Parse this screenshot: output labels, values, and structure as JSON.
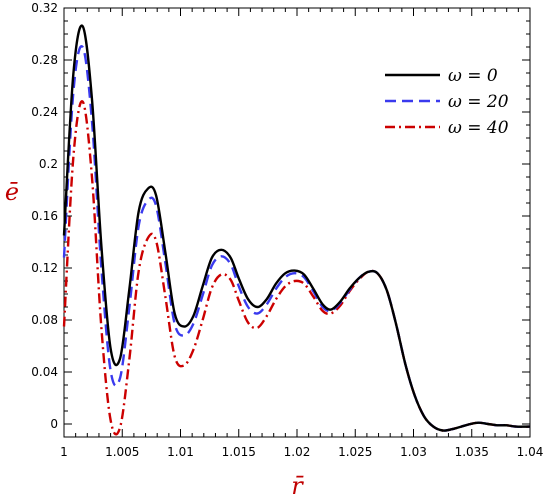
{
  "chart_data": {
    "type": "line",
    "xlabel": "r̄",
    "ylabel": "ē",
    "xlim": [
      1.0,
      1.04
    ],
    "ylim": [
      -0.01,
      0.32
    ],
    "x_ticks": [
      "1",
      "1.005",
      "1.01",
      "1.015",
      "1.02",
      "1.025",
      "1.03",
      "1.035",
      "1.04"
    ],
    "x_tick_values": [
      1.0,
      1.005,
      1.01,
      1.015,
      1.02,
      1.025,
      1.03,
      1.035,
      1.04
    ],
    "y_ticks": [
      "0",
      "0.04",
      "0.08",
      "0.12",
      "0.16",
      "0.2",
      "0.24",
      "0.28",
      "0.32"
    ],
    "y_tick_values": [
      0,
      0.04,
      0.08,
      0.12,
      0.16,
      0.2,
      0.24,
      0.28,
      0.32
    ],
    "grid": false,
    "legend_position": "top-right",
    "series": [
      {
        "name": "ω = 0",
        "color": "#000000",
        "style": "solid",
        "x": [
          1.0,
          1.0008,
          1.0016,
          1.0024,
          1.0032,
          1.004,
          1.0048,
          1.0056,
          1.0064,
          1.0072,
          1.0079,
          1.0087,
          1.0095,
          1.0103,
          1.0111,
          1.0119,
          1.0127,
          1.0135,
          1.0143,
          1.015,
          1.0158,
          1.0166,
          1.0174,
          1.0182,
          1.019,
          1.0198,
          1.0206,
          1.0214,
          1.0222,
          1.0229,
          1.0237,
          1.0245,
          1.0253,
          1.0261,
          1.0269,
          1.0277,
          1.0285,
          1.0293,
          1.0301,
          1.0309,
          1.0317,
          1.0325,
          1.0333,
          1.0341,
          1.0349,
          1.0356,
          1.0364,
          1.0372,
          1.038,
          1.0388,
          1.04
        ],
        "y": [
          0.145,
          0.269,
          0.306,
          0.25,
          0.138,
          0.058,
          0.05,
          0.103,
          0.163,
          0.181,
          0.176,
          0.132,
          0.085,
          0.075,
          0.083,
          0.106,
          0.128,
          0.134,
          0.128,
          0.112,
          0.096,
          0.09,
          0.096,
          0.108,
          0.116,
          0.118,
          0.115,
          0.104,
          0.092,
          0.088,
          0.094,
          0.104,
          0.112,
          0.117,
          0.116,
          0.103,
          0.077,
          0.046,
          0.022,
          0.006,
          -0.002,
          -0.005,
          -0.004,
          -0.002,
          0.0,
          0.001,
          0.0,
          -0.001,
          -0.001,
          -0.002,
          -0.002
        ]
      },
      {
        "name": "ω = 20",
        "color": "#3a3aee",
        "style": "dashed",
        "x": [
          1.0,
          1.0008,
          1.0016,
          1.0024,
          1.0032,
          1.004,
          1.0048,
          1.0056,
          1.0064,
          1.0072,
          1.0079,
          1.0087,
          1.0095,
          1.0103,
          1.0111,
          1.0119,
          1.0127,
          1.0135,
          1.0143,
          1.015,
          1.0158,
          1.0166,
          1.0174,
          1.0182,
          1.019,
          1.0198,
          1.0206,
          1.0214,
          1.0222,
          1.0229,
          1.0237,
          1.0245,
          1.0253,
          1.0261,
          1.0269,
          1.0277,
          1.0285,
          1.0293,
          1.0301,
          1.0309,
          1.0317,
          1.0325,
          1.0333,
          1.0341,
          1.0349,
          1.0356,
          1.0364,
          1.0372,
          1.038,
          1.0388,
          1.04
        ],
        "y": [
          0.128,
          0.255,
          0.29,
          0.233,
          0.121,
          0.041,
          0.035,
          0.089,
          0.152,
          0.172,
          0.168,
          0.124,
          0.077,
          0.068,
          0.077,
          0.099,
          0.122,
          0.129,
          0.123,
          0.106,
          0.09,
          0.085,
          0.092,
          0.104,
          0.113,
          0.116,
          0.113,
          0.102,
          0.09,
          0.087,
          0.093,
          0.103,
          0.112,
          0.117,
          0.116,
          0.103,
          0.077,
          0.046,
          0.022,
          0.006,
          -0.002,
          -0.005,
          -0.004,
          -0.002,
          0.0,
          0.001,
          0.0,
          -0.001,
          -0.001,
          -0.002,
          -0.002
        ]
      },
      {
        "name": "ω = 40",
        "color": "#cc0000",
        "style": "dashdot",
        "x": [
          1.0,
          1.0008,
          1.0016,
          1.0024,
          1.0032,
          1.004,
          1.0048,
          1.0056,
          1.0064,
          1.0072,
          1.0079,
          1.0087,
          1.0095,
          1.0103,
          1.0111,
          1.0119,
          1.0127,
          1.0135,
          1.0143,
          1.015,
          1.0158,
          1.0166,
          1.0174,
          1.0182,
          1.019,
          1.0198,
          1.0206,
          1.0214,
          1.0222,
          1.0229,
          1.0237,
          1.0245,
          1.0253,
          1.0261,
          1.0269,
          1.0277,
          1.0285,
          1.0293,
          1.0301,
          1.0309,
          1.0317,
          1.0325,
          1.0333,
          1.0341,
          1.0349,
          1.0356,
          1.0364,
          1.0372,
          1.038,
          1.0388,
          1.04
        ],
        "y": [
          0.075,
          0.205,
          0.248,
          0.19,
          0.075,
          0.003,
          -0.003,
          0.049,
          0.117,
          0.143,
          0.141,
          0.098,
          0.052,
          0.045,
          0.057,
          0.08,
          0.105,
          0.115,
          0.111,
          0.095,
          0.078,
          0.074,
          0.083,
          0.096,
          0.106,
          0.11,
          0.108,
          0.098,
          0.087,
          0.085,
          0.091,
          0.102,
          0.111,
          0.117,
          0.116,
          0.103,
          0.077,
          0.046,
          0.022,
          0.006,
          -0.002,
          -0.005,
          -0.004,
          -0.002,
          0.0,
          0.001,
          0.0,
          -0.001,
          -0.001,
          -0.002,
          -0.002
        ]
      }
    ]
  }
}
